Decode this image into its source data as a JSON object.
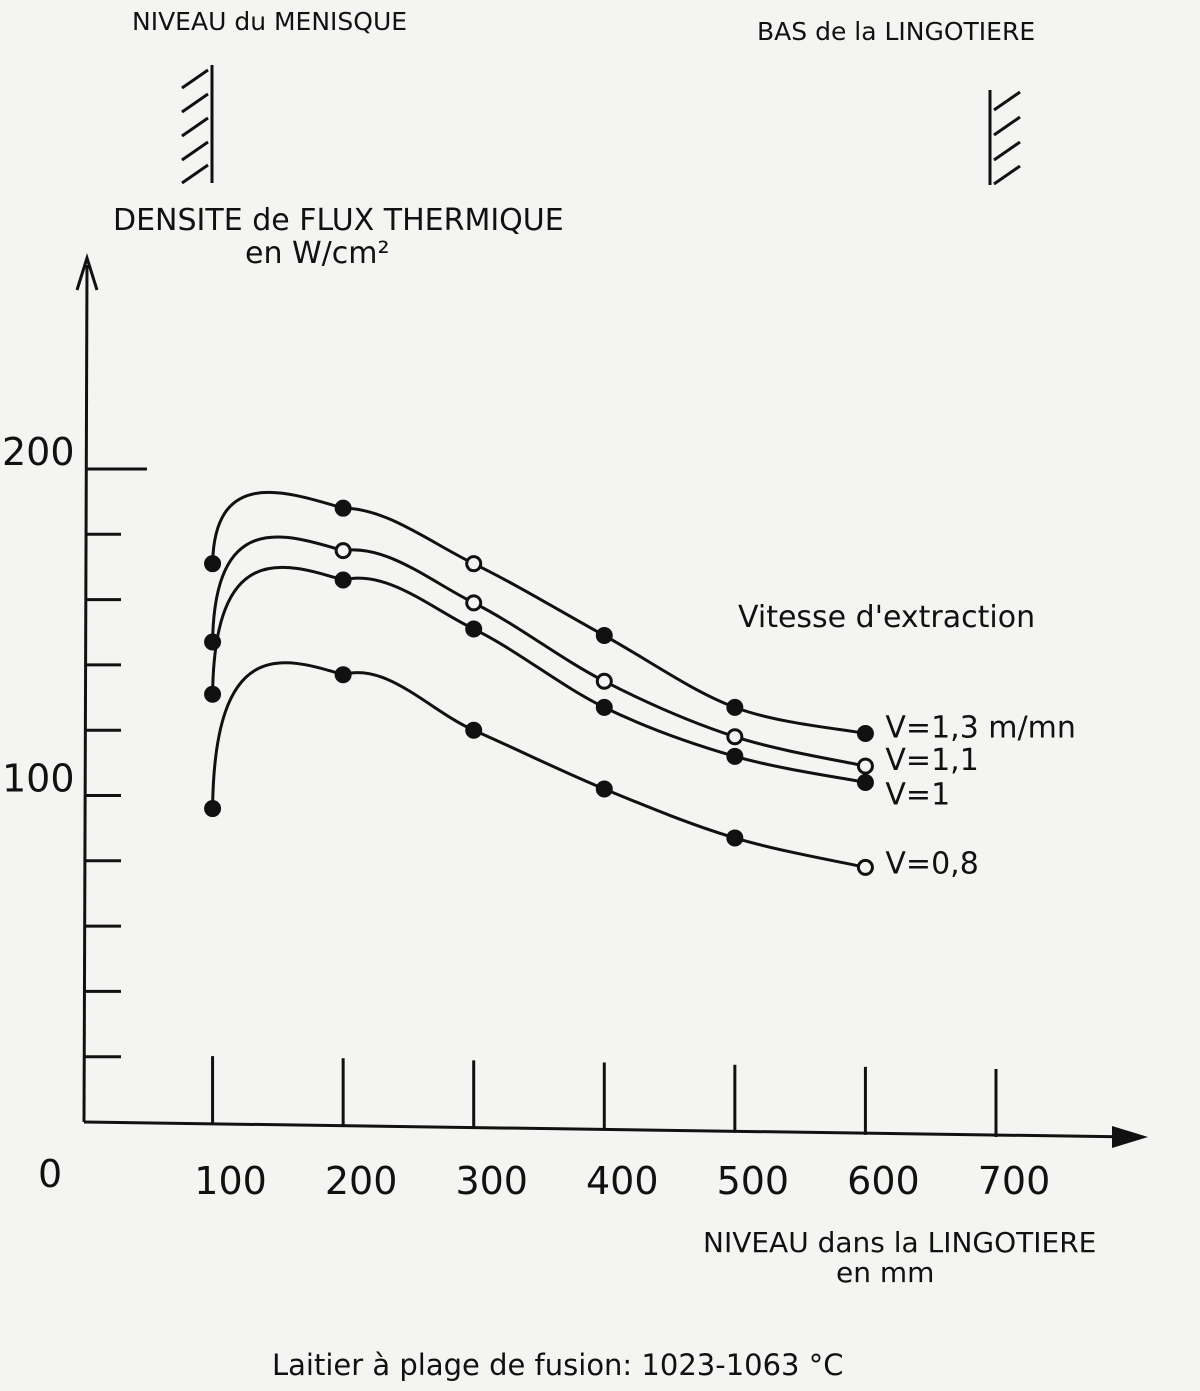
{
  "chart_data": {
    "type": "line",
    "top_labels": {
      "left": "NIVEAU du MENISQUE",
      "right": "BAS de la LINGOTIERE"
    },
    "ylabel": [
      "DENSITE de FLUX THERMIQUE",
      "en W/cm²"
    ],
    "xlabel": [
      "NIVEAU dans la LINGOTIERE",
      "en mm"
    ],
    "caption": "Laitier à plage de fusion: 1023-1063 °C",
    "legend_title": "Vitesse d'extraction",
    "origin_label": "0",
    "x_ticks": [
      {
        "value": 100,
        "label": "100"
      },
      {
        "value": 200,
        "label": "200"
      },
      {
        "value": 300,
        "label": "300"
      },
      {
        "value": 400,
        "label": "400"
      },
      {
        "value": 500,
        "label": "500"
      },
      {
        "value": 600,
        "label": "600"
      },
      {
        "value": 700,
        "label": "700"
      }
    ],
    "y_ticks": [
      {
        "value": 20
      },
      {
        "value": 40
      },
      {
        "value": 60
      },
      {
        "value": 80
      },
      {
        "value": 100,
        "label": "100"
      },
      {
        "value": 120
      },
      {
        "value": 140
      },
      {
        "value": 160
      },
      {
        "value": 180
      },
      {
        "value": 200,
        "label": "200"
      }
    ],
    "xlim": [
      0,
      700
    ],
    "ylim": [
      0,
      200
    ],
    "series": [
      {
        "name": "V=1,3 m/mn",
        "x": [
          100,
          200,
          300,
          400,
          500,
          600
        ],
        "y": [
          171,
          188,
          171,
          149,
          127,
          119
        ]
      },
      {
        "name": "V=1,1",
        "x": [
          100,
          200,
          300,
          400,
          500,
          600
        ],
        "y": [
          147,
          175,
          159,
          135,
          118,
          109
        ]
      },
      {
        "name": "V=1",
        "x": [
          100,
          200,
          300,
          400,
          500,
          600
        ],
        "y": [
          131,
          166,
          151,
          127,
          112,
          104
        ]
      },
      {
        "name": "V=0,8",
        "x": [
          100,
          200,
          300,
          400,
          500,
          600
        ],
        "y": [
          96,
          137,
          120,
          102,
          87,
          78
        ]
      }
    ]
  }
}
